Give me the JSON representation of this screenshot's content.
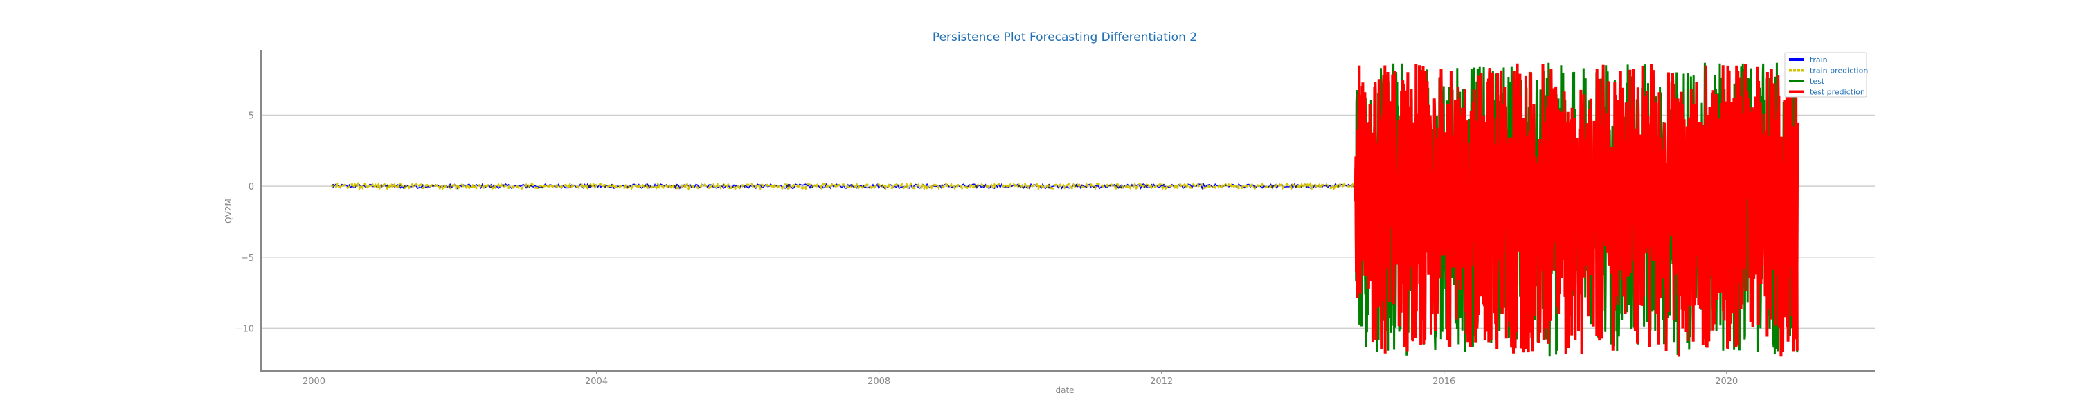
{
  "chart_data": {
    "type": "line",
    "title": "Persistence Plot Forecasting Differentiation 2",
    "xlabel": "date",
    "ylabel": "QV2M",
    "x_ticks": [
      "2000",
      "2004",
      "2008",
      "2012",
      "2016",
      "2020"
    ],
    "x_tick_years": [
      2000,
      2004,
      2008,
      2012,
      2016,
      2020
    ],
    "y_ticks": [
      "5",
      "0",
      "−5",
      "−10"
    ],
    "y_tick_values": [
      5,
      0,
      -5,
      -10
    ],
    "xlim_years": [
      1999.25,
      2022.1
    ],
    "ylim": [
      -13,
      9.6
    ],
    "grid": "horizontal",
    "legend_position": "top-right",
    "series": [
      {
        "name": "train",
        "color": "#0000ff",
        "start_year": 2000.25,
        "end_year": 2014.75,
        "value_range": [
          -0.15,
          0.15
        ]
      },
      {
        "name": "train prediction",
        "color": "#d4c400",
        "dashed": true,
        "start_year": 2000.25,
        "end_year": 2014.75,
        "value_range": [
          -0.15,
          0.15
        ]
      },
      {
        "name": "test",
        "color": "#008000",
        "start_year": 2014.75,
        "end_year": 2021.0,
        "value_range": [
          -12,
          8.7
        ]
      },
      {
        "name": "test prediction",
        "color": "#ff0000",
        "start_year": 2014.75,
        "end_year": 2021.0,
        "value_range": [
          -12,
          8.7
        ]
      }
    ]
  }
}
